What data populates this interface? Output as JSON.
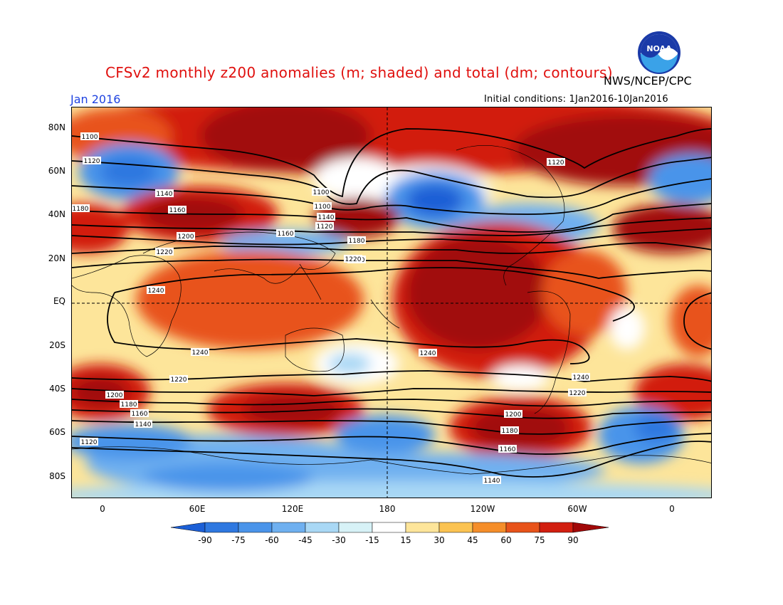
{
  "title": "CFSv2 monthly z200 anomalies (m; shaded) and total (dm; contours)",
  "agency": "NWS/NCEP/CPC",
  "logo_text": "NOAA",
  "month": "Jan 2016",
  "initial_conditions": "Initial conditions: 1Jan2016-10Jan2016",
  "map": {
    "lat_labels": [
      "80N",
      "60N",
      "40N",
      "20N",
      "EQ",
      "20S",
      "40S",
      "60S",
      "80S"
    ],
    "lon_labels": [
      "0",
      "60E",
      "120E",
      "180",
      "120W",
      "60W",
      "0"
    ],
    "contour_labels": [
      "1100",
      "1120",
      "1140",
      "1160",
      "1180",
      "1200",
      "1220",
      "1240",
      "1240",
      "1220",
      "1200",
      "1180",
      "1160",
      "1140",
      "1120",
      "1100",
      "1100",
      "1120",
      "1140",
      "1160",
      "1180",
      "1200",
      "1220",
      "1240",
      "1240",
      "1220",
      "1200",
      "1180",
      "1160",
      "1140",
      "1120"
    ]
  },
  "colorbar": {
    "labels": [
      "-90",
      "-75",
      "-60",
      "-45",
      "-30",
      "-15",
      "15",
      "30",
      "45",
      "60",
      "75",
      "90"
    ],
    "colors": [
      "#1c5fd6",
      "#2f78e0",
      "#4a94ea",
      "#6fb0f0",
      "#a9d8f5",
      "#d7f2f7",
      "#ffffff",
      "#fde59a",
      "#fbc352",
      "#f58e2a",
      "#e8531a",
      "#d21f10",
      "#a10808"
    ]
  }
}
